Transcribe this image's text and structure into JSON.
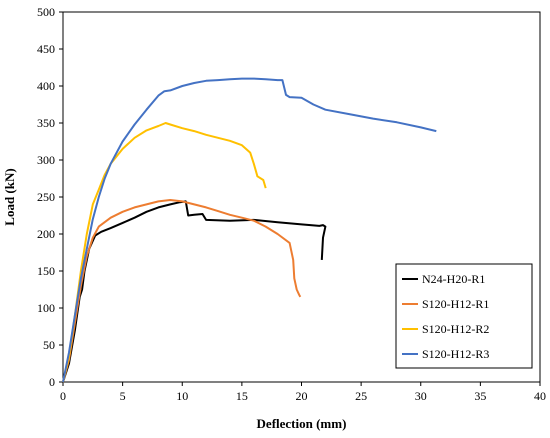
{
  "chart_data": {
    "type": "line",
    "xlabel": "Deflection (mm)",
    "ylabel": "Load (kN)",
    "xlim": [
      0,
      40
    ],
    "ylim": [
      0,
      500
    ],
    "x_ticks": [
      0,
      5,
      10,
      15,
      20,
      25,
      30,
      35,
      40
    ],
    "y_ticks": [
      0,
      50,
      100,
      150,
      200,
      250,
      300,
      350,
      400,
      450,
      500
    ],
    "grid": false,
    "legend_position": "lower-right",
    "series": [
      {
        "name": "N24-H20-R1",
        "color": "#000000",
        "points": [
          [
            0,
            0
          ],
          [
            0.5,
            25
          ],
          [
            1,
            70
          ],
          [
            1.4,
            115
          ],
          [
            1.6,
            125
          ],
          [
            1.8,
            150
          ],
          [
            2.2,
            180
          ],
          [
            2.7,
            198
          ],
          [
            3.2,
            203
          ],
          [
            4,
            208
          ],
          [
            5,
            215
          ],
          [
            6,
            222
          ],
          [
            7,
            230
          ],
          [
            8,
            236
          ],
          [
            9,
            240
          ],
          [
            9.8,
            243
          ],
          [
            10.3,
            244
          ],
          [
            10.5,
            225
          ],
          [
            11,
            226
          ],
          [
            11.7,
            227
          ],
          [
            12,
            219
          ],
          [
            14,
            218
          ],
          [
            16,
            219
          ],
          [
            18,
            216
          ],
          [
            20,
            213
          ],
          [
            21.5,
            211
          ],
          [
            21.8,
            212
          ],
          [
            22,
            210
          ],
          [
            21.8,
            195
          ],
          [
            21.7,
            165
          ]
        ]
      },
      {
        "name": "S120-H12-R1",
        "color": "#ED7D31",
        "points": [
          [
            0,
            0
          ],
          [
            0.5,
            30
          ],
          [
            1,
            80
          ],
          [
            1.5,
            130
          ],
          [
            2,
            170
          ],
          [
            2.5,
            195
          ],
          [
            3,
            210
          ],
          [
            4,
            222
          ],
          [
            5,
            230
          ],
          [
            6,
            236
          ],
          [
            7,
            240
          ],
          [
            8,
            244
          ],
          [
            9,
            246
          ],
          [
            10,
            244
          ],
          [
            11,
            240
          ],
          [
            12,
            236
          ],
          [
            13,
            231
          ],
          [
            14,
            226
          ],
          [
            15,
            222
          ],
          [
            16,
            218
          ],
          [
            17,
            210
          ],
          [
            18,
            200
          ],
          [
            19,
            188
          ],
          [
            19.3,
            165
          ],
          [
            19.4,
            140
          ],
          [
            19.6,
            125
          ],
          [
            19.8,
            118
          ],
          [
            19.9,
            115
          ]
        ]
      },
      {
        "name": "S120-H12-R2",
        "color": "#FFC000",
        "points": [
          [
            0,
            0
          ],
          [
            0.5,
            35
          ],
          [
            1,
            90
          ],
          [
            1.5,
            150
          ],
          [
            2,
            200
          ],
          [
            2.5,
            240
          ],
          [
            3,
            260
          ],
          [
            3.5,
            280
          ],
          [
            4,
            295
          ],
          [
            5,
            315
          ],
          [
            6,
            330
          ],
          [
            7,
            340
          ],
          [
            8,
            346
          ],
          [
            8.6,
            350
          ],
          [
            9,
            348
          ],
          [
            10,
            343
          ],
          [
            11,
            339
          ],
          [
            12,
            334
          ],
          [
            13,
            330
          ],
          [
            14,
            326
          ],
          [
            15,
            320
          ],
          [
            15.7,
            310
          ],
          [
            16,
            295
          ],
          [
            16.3,
            278
          ],
          [
            16.8,
            273
          ],
          [
            17,
            262
          ]
        ]
      },
      {
        "name": "S120-H12-R3",
        "color": "#4472C4",
        "points": [
          [
            0,
            0
          ],
          [
            0.5,
            40
          ],
          [
            1,
            90
          ],
          [
            1.5,
            140
          ],
          [
            2,
            180
          ],
          [
            2.5,
            220
          ],
          [
            3,
            250
          ],
          [
            3.5,
            275
          ],
          [
            4,
            295
          ],
          [
            5,
            325
          ],
          [
            6,
            348
          ],
          [
            7,
            368
          ],
          [
            8,
            387
          ],
          [
            8.5,
            393
          ],
          [
            9,
            394
          ],
          [
            10,
            400
          ],
          [
            11,
            404
          ],
          [
            12,
            407
          ],
          [
            13,
            408
          ],
          [
            14,
            409
          ],
          [
            15,
            410
          ],
          [
            16,
            410
          ],
          [
            17,
            409
          ],
          [
            18,
            408
          ],
          [
            18.4,
            408
          ],
          [
            18.7,
            388
          ],
          [
            19,
            385
          ],
          [
            20,
            384
          ],
          [
            21,
            375
          ],
          [
            22,
            368
          ],
          [
            24,
            362
          ],
          [
            26,
            356
          ],
          [
            28,
            351
          ],
          [
            30,
            344
          ],
          [
            31.3,
            339
          ]
        ]
      }
    ]
  }
}
